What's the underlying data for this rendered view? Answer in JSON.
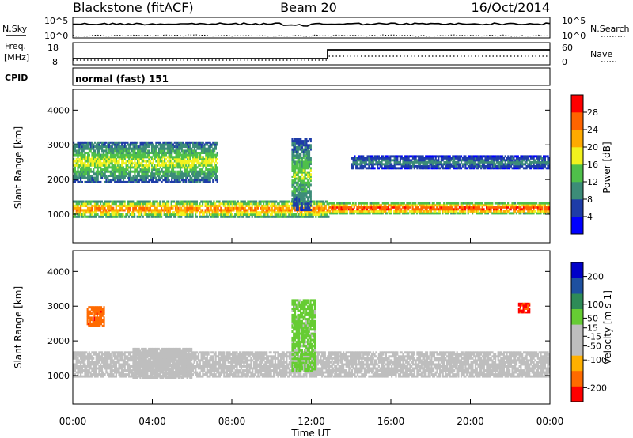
{
  "header": {
    "station": "Blackstone (fitACF)",
    "beam": "Beam 20",
    "date": "16/Oct/2014"
  },
  "summary": {
    "nsky_label": "N.Sky",
    "nsky_ticks": [
      "10^5",
      "10^0"
    ],
    "nsearch_label": "N.Search",
    "freq_label_1": "Freq.",
    "freq_label_2": "[MHz]",
    "freq_ticks": [
      "18",
      "8"
    ],
    "nave_label": "Nave",
    "nave_ticks": [
      "60",
      "0"
    ],
    "cpid_label": "CPID",
    "cpid_value": "normal (fast) 151"
  },
  "colors": {
    "power_scale": [
      "#0000ff",
      "#1e3ca8",
      "#3c8c78",
      "#4fc04a",
      "#f2f21e",
      "#ffaa00",
      "#ff6400",
      "#ff0000"
    ],
    "velocity_scale": [
      "#ff0000",
      "#ff6a00",
      "#ffb000",
      "#bebebe",
      "#bebebe",
      "#66cc33",
      "#2e8b57",
      "#1e50a0",
      "#0000c8"
    ],
    "ground_scatter": "#bebebe"
  },
  "chart_data": [
    {
      "type": "heatmap",
      "name": "power",
      "xlabel": "",
      "ylabel": "Slant Range [km]",
      "x_ticks": [
        "00:00",
        "04:00",
        "08:00",
        "12:00",
        "16:00",
        "20:00",
        "00:00"
      ],
      "y_ticks": [
        1000,
        2000,
        3000,
        4000
      ],
      "ylim": [
        180,
        4600
      ],
      "colorbar_label": "Power [dB]",
      "colorbar_ticks": [
        4,
        8,
        12,
        16,
        20,
        24,
        28
      ],
      "colorbar_range": [
        0,
        32
      ],
      "features": [
        {
          "t0": 0.0,
          "t1": 12.9,
          "range_km": [
            900,
            1400
          ],
          "peak_db": 26
        },
        {
          "t0": 12.9,
          "t1": 24.0,
          "range_km": [
            1000,
            1350
          ],
          "peak_db": 30
        },
        {
          "t0": 0.0,
          "t1": 7.3,
          "range_km": [
            1900,
            3100
          ],
          "peak_db": 18
        },
        {
          "t0": 11.0,
          "t1": 12.0,
          "range_km": [
            1100,
            3200
          ],
          "peak_db": 16
        },
        {
          "t0": 14.0,
          "t1": 24.0,
          "range_km": [
            2300,
            2700
          ],
          "peak_db": 10
        }
      ]
    },
    {
      "type": "heatmap",
      "name": "velocity",
      "xlabel": "Time UT",
      "ylabel": "Slant Range [km]",
      "x_ticks": [
        "00:00",
        "04:00",
        "08:00",
        "12:00",
        "16:00",
        "20:00",
        "00:00"
      ],
      "y_ticks": [
        1000,
        2000,
        3000,
        4000
      ],
      "ylim": [
        180,
        4600
      ],
      "colorbar_label": "Velocity [m s-1]",
      "colorbar_ticks": [
        -200,
        -100,
        -50,
        -15,
        15,
        50,
        100,
        200
      ],
      "colorbar_range": [
        -250,
        250
      ],
      "features": [
        {
          "t0": 0.0,
          "t1": 24.0,
          "range_km": [
            950,
            1700
          ],
          "velocity": 0,
          "ground_scatter": true
        },
        {
          "t0": 3.0,
          "t1": 6.0,
          "range_km": [
            900,
            1800
          ],
          "velocity": -60
        },
        {
          "t0": 11.0,
          "t1": 12.2,
          "range_km": [
            1100,
            3200
          ],
          "velocity": 40
        },
        {
          "t0": 0.7,
          "t1": 1.6,
          "range_km": [
            2400,
            3000
          ],
          "velocity": -180
        },
        {
          "t0": 22.4,
          "t1": 23.0,
          "range_km": [
            2800,
            3100
          ],
          "velocity": -200
        }
      ]
    }
  ]
}
